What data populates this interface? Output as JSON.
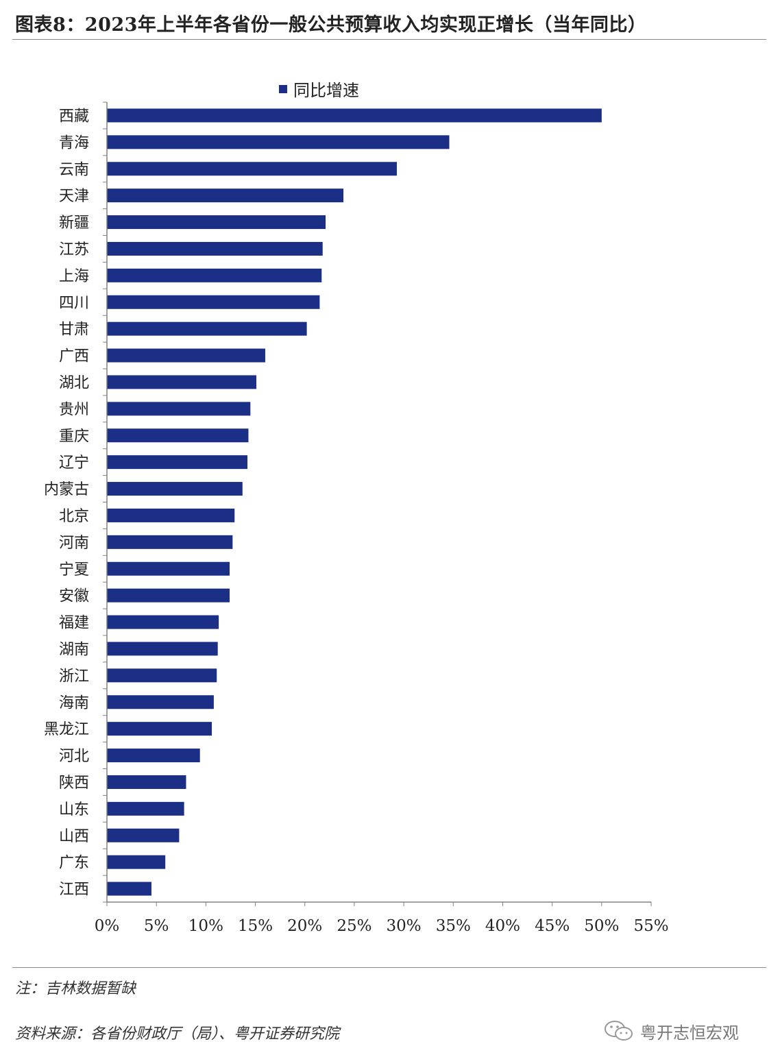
{
  "title": "图表8：2023年上半年各省份一般公共预算收入均实现正增长（当年同比）",
  "note": "注：吉林数据暂缺",
  "source": "资料来源：各省份财政厅（局）、粤开证券研究院",
  "watermark": {
    "text": "粤开志恒宏观",
    "icon": "wechat-logo-icon"
  },
  "colors": {
    "bar": "#1b2f86",
    "axis": "#808080",
    "text": "#222222"
  },
  "chart_data": {
    "type": "bar",
    "orientation": "horizontal",
    "title": "",
    "xlabel": "",
    "ylabel": "",
    "legend": {
      "entries": [
        "同比增速"
      ],
      "placement": "top-center"
    },
    "xlim": [
      0,
      55
    ],
    "xticks": [
      "0%",
      "5%",
      "10%",
      "15%",
      "20%",
      "25%",
      "30%",
      "35%",
      "40%",
      "45%",
      "50%",
      "55%"
    ],
    "grid": false,
    "categories": [
      "西藏",
      "青海",
      "云南",
      "天津",
      "新疆",
      "江苏",
      "上海",
      "四川",
      "甘肃",
      "广西",
      "湖北",
      "贵州",
      "重庆",
      "辽宁",
      "内蒙古",
      "北京",
      "河南",
      "宁夏",
      "安徽",
      "福建",
      "湖南",
      "浙江",
      "海南",
      "黑龙江",
      "河北",
      "陕西",
      "山东",
      "山西",
      "广东",
      "江西"
    ],
    "series": [
      {
        "name": "同比增速",
        "values": [
          50.0,
          34.6,
          29.3,
          23.9,
          22.1,
          21.8,
          21.7,
          21.5,
          20.2,
          16.0,
          15.1,
          14.5,
          14.3,
          14.2,
          13.7,
          12.9,
          12.7,
          12.4,
          12.4,
          11.3,
          11.2,
          11.1,
          10.8,
          10.6,
          9.4,
          8.0,
          7.8,
          7.3,
          5.9,
          4.5
        ]
      }
    ]
  }
}
